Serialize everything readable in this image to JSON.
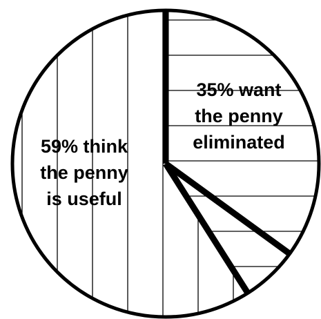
{
  "chart_data": {
    "type": "pie",
    "slices": [
      {
        "value": 35,
        "hatch": "horizontal",
        "label_lines": [
          "35% want",
          "the penny",
          "eliminated"
        ]
      },
      {
        "value": 6,
        "hatch": "horizontal",
        "label_lines": []
      },
      {
        "value": 59,
        "hatch": "vertical",
        "label_lines": [
          "59% think",
          "the penny",
          "is useful"
        ]
      }
    ],
    "colors": {
      "ink": "#000000",
      "background": "#ffffff"
    }
  }
}
